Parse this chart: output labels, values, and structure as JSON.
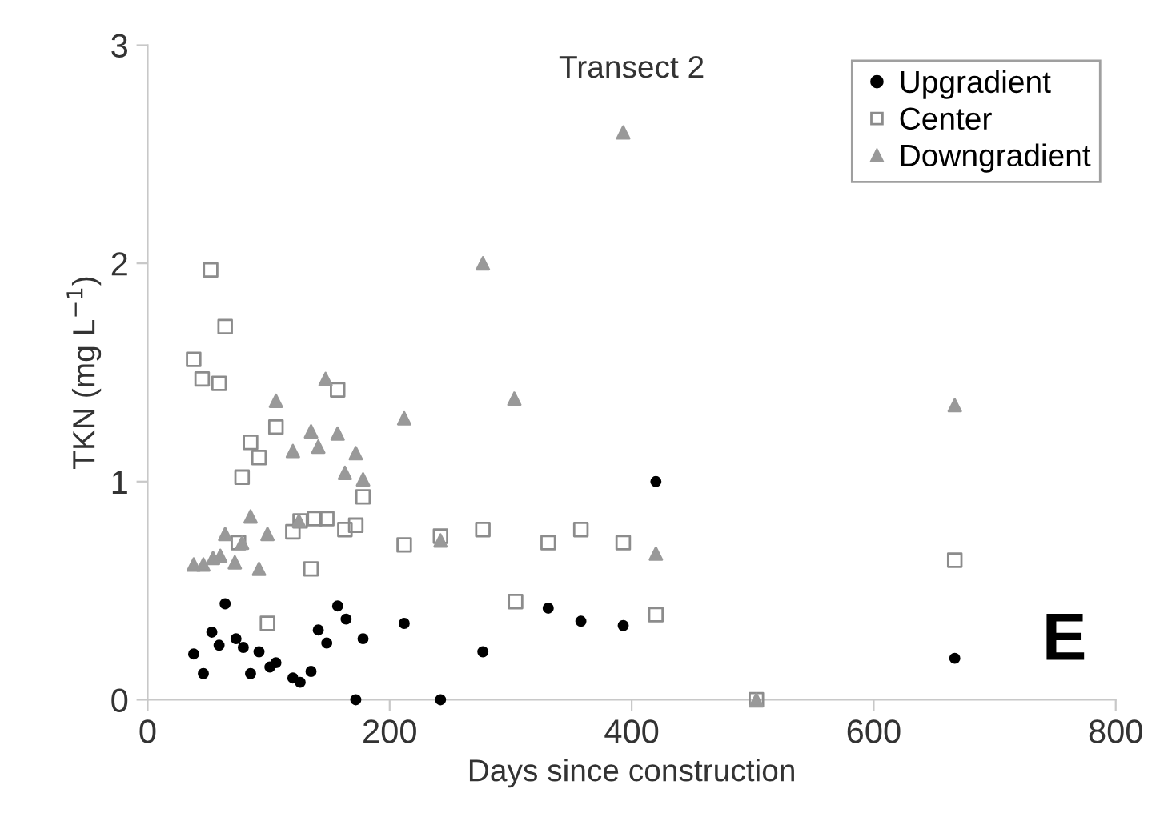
{
  "chart_data": {
    "type": "scatter",
    "title": "Transect 2",
    "xlabel": "Days since construction",
    "ylabel": "TKN (mg L$^{−1}$)",
    "xlim": [
      0,
      800
    ],
    "xticks": [
      0,
      200,
      400,
      600,
      800
    ],
    "ylim": [
      0,
      3
    ],
    "yticks": [
      0,
      1,
      2,
      3
    ],
    "grid": false,
    "legend": "top right",
    "annotations": [
      "E"
    ],
    "series": [
      {
        "name": "Upgradient",
        "color": "#000000",
        "marker": "circle",
        "x": [
          64,
          157,
          164,
          212,
          53,
          141,
          59,
          73,
          79,
          148,
          178,
          38,
          92,
          46,
          85,
          101,
          106,
          120,
          126,
          135,
          172,
          420,
          277,
          331,
          358,
          393,
          242,
          667
        ],
        "values": [
          0.44,
          0.43,
          0.37,
          0.35,
          0.31,
          0.32,
          0.25,
          0.28,
          0.24,
          0.26,
          0.28,
          0.21,
          0.22,
          0.12,
          0.12,
          0.15,
          0.17,
          0.1,
          0.08,
          0.13,
          0,
          1.0,
          0.22,
          0.42,
          0.36,
          0.34,
          0,
          0.19
        ]
      },
      {
        "name": "Center",
        "color": "#8c8c8c",
        "marker": "square",
        "x": [
          52,
          64,
          38,
          45,
          59,
          157,
          106,
          85,
          92,
          78,
          178,
          120,
          126,
          138,
          148,
          163,
          172,
          75,
          135,
          99,
          212,
          242,
          277,
          331,
          358,
          393,
          304,
          420,
          667,
          503
        ],
        "values": [
          1.97,
          1.71,
          1.56,
          1.47,
          1.45,
          1.42,
          1.25,
          1.18,
          1.11,
          1.02,
          0.93,
          0.77,
          0.82,
          0.83,
          0.83,
          0.78,
          0.8,
          0.72,
          0.6,
          0.35,
          0.71,
          0.75,
          0.78,
          0.72,
          0.78,
          0.72,
          0.45,
          0.39,
          0.64,
          0
        ]
      },
      {
        "name": "Downgradient",
        "color": "#999999",
        "marker": "triangle",
        "x": [
          147,
          106,
          212,
          135,
          157,
          120,
          141,
          172,
          163,
          178,
          85,
          125,
          64,
          99,
          78,
          38,
          46,
          54,
          60,
          72,
          92,
          393,
          277,
          303,
          242,
          420,
          667,
          503
        ],
        "values": [
          1.47,
          1.37,
          1.29,
          1.23,
          1.22,
          1.14,
          1.16,
          1.13,
          1.04,
          1.01,
          0.84,
          0.82,
          0.76,
          0.76,
          0.72,
          0.62,
          0.62,
          0.65,
          0.66,
          0.63,
          0.6,
          2.6,
          2.0,
          1.38,
          0.73,
          0.67,
          1.35,
          0
        ]
      }
    ]
  }
}
